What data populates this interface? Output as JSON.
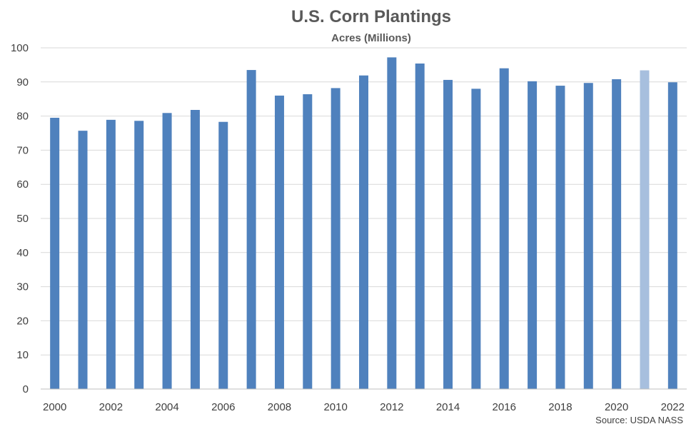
{
  "chart_data": {
    "type": "bar",
    "title": "U.S. Corn Plantings",
    "subtitle": "Acres (Millions)",
    "source": "Source: USDA NASS",
    "categories": [
      "2000",
      "2001",
      "2002",
      "2003",
      "2004",
      "2005",
      "2006",
      "2007",
      "2008",
      "2009",
      "2010",
      "2011",
      "2012",
      "2013",
      "2014",
      "2015",
      "2016",
      "2017",
      "2018",
      "2019",
      "2020",
      "2021",
      "2022"
    ],
    "x_tick_labels": [
      "2000",
      "2002",
      "2004",
      "2006",
      "2008",
      "2010",
      "2012",
      "2014",
      "2016",
      "2018",
      "2020",
      "2022"
    ],
    "values": [
      79.5,
      75.7,
      78.9,
      78.6,
      80.9,
      81.8,
      78.3,
      93.5,
      86.0,
      86.4,
      88.2,
      91.9,
      97.2,
      95.4,
      90.6,
      88.0,
      94.0,
      90.2,
      88.9,
      89.7,
      90.8,
      93.4,
      89.9
    ],
    "highlight_index": 21,
    "colors": {
      "bar": "#4f81bd",
      "highlight": "#a7bfde"
    },
    "ylim": [
      0,
      100
    ],
    "y_ticks": [
      0,
      10,
      20,
      30,
      40,
      50,
      60,
      70,
      80,
      90,
      100
    ],
    "grid": true,
    "legend": "none"
  }
}
